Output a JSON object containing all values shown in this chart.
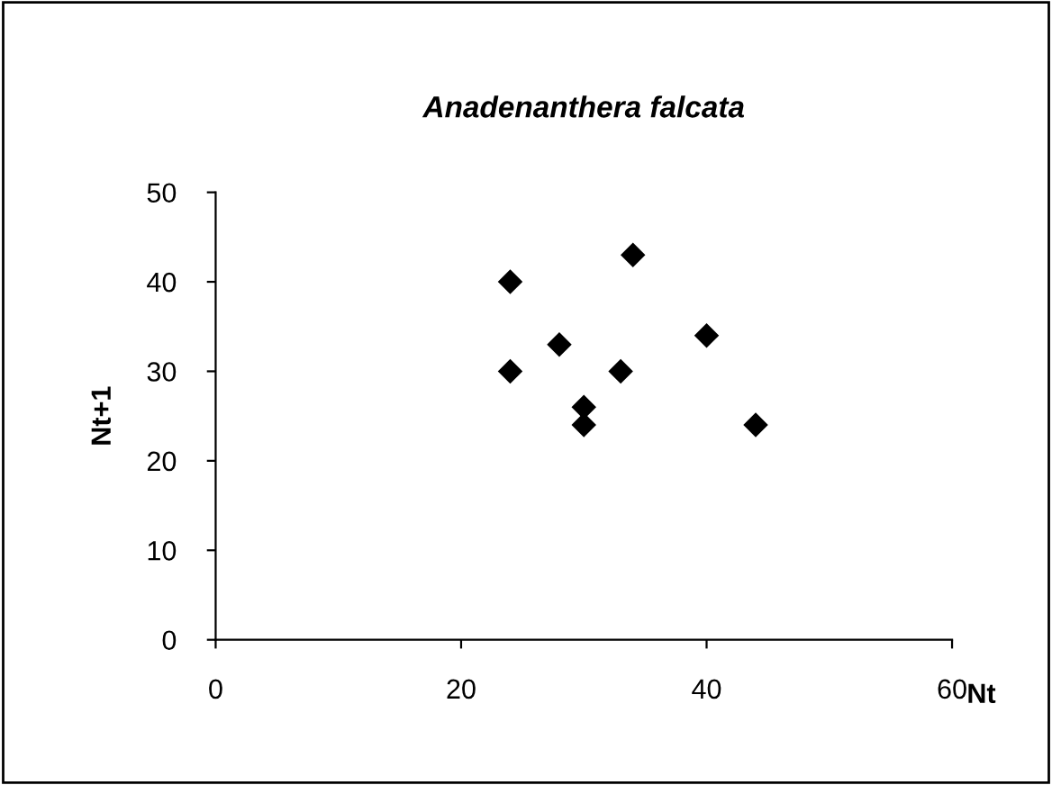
{
  "chart_data": {
    "type": "scatter",
    "title": "Anadenanthera falcata",
    "xlabel": "Nt",
    "ylabel": "Nt+1",
    "x": [
      24,
      24,
      28,
      30,
      30,
      33,
      34,
      40,
      44
    ],
    "values": [
      40,
      30,
      33,
      26,
      24,
      30,
      43,
      34,
      24
    ],
    "color": "#000000",
    "marker": "diamond",
    "xlim": [
      0,
      60
    ],
    "xticks": [
      0,
      20,
      40,
      60
    ],
    "ylim": [
      0,
      50
    ],
    "yticks": [
      0,
      10,
      20,
      30,
      40,
      50
    ],
    "grid": false
  }
}
